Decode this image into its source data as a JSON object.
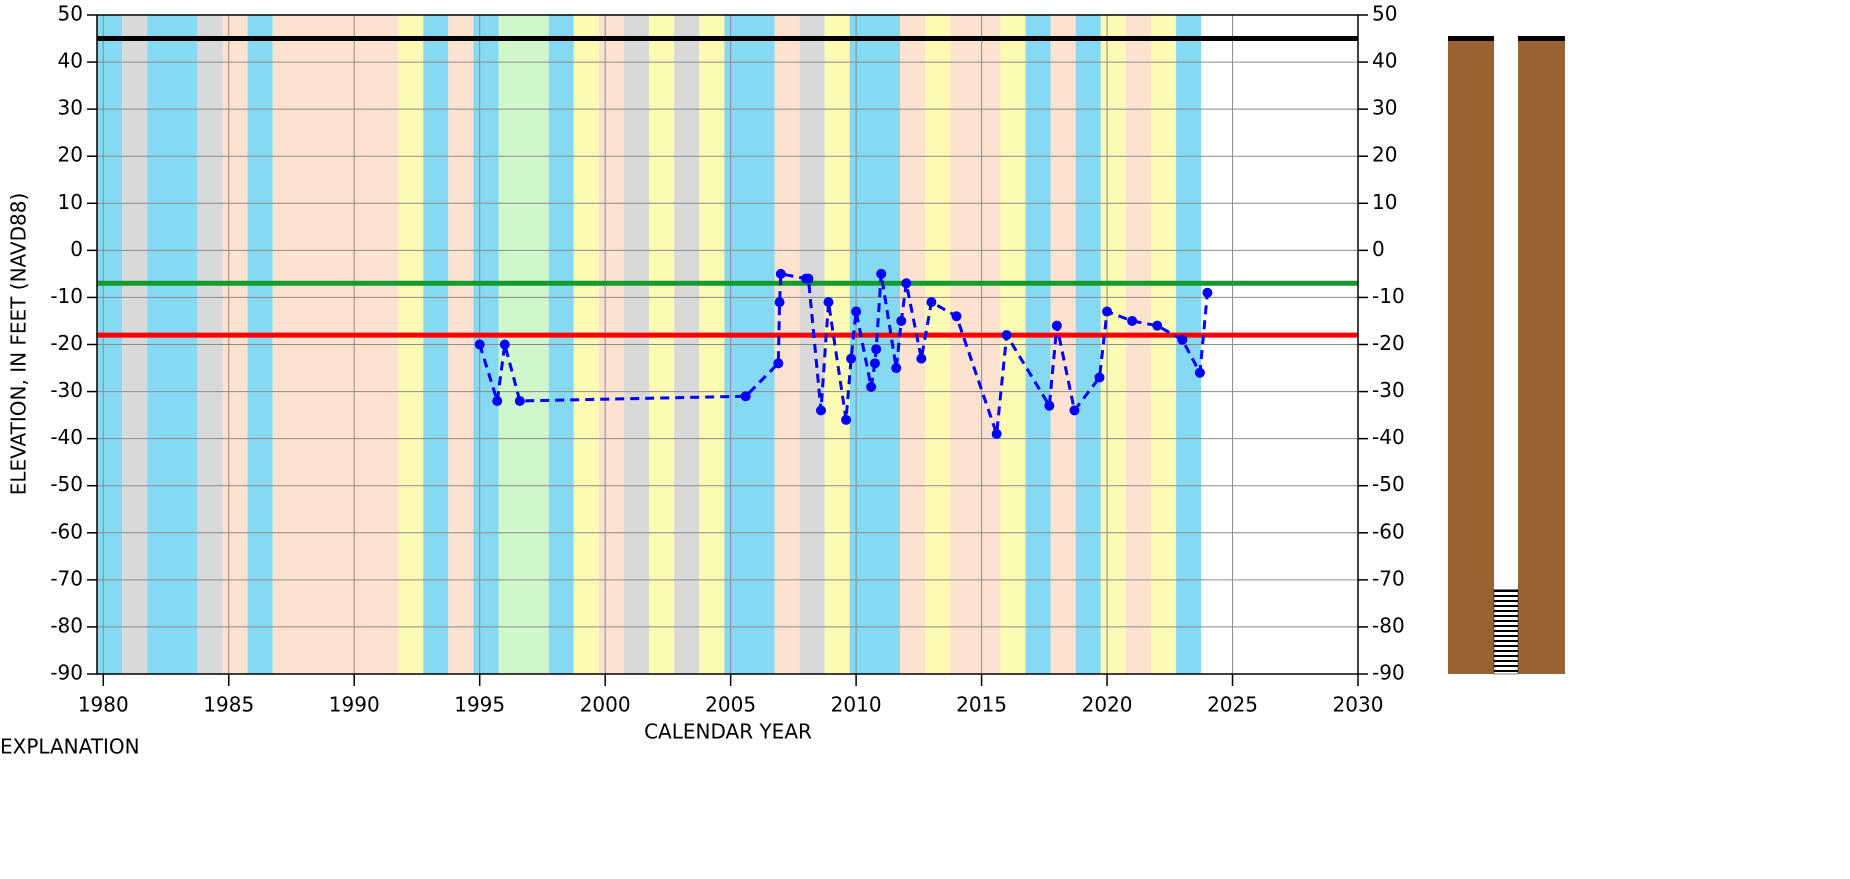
{
  "chart_data": {
    "type": "line",
    "x_label": "CALENDAR YEAR",
    "y_label": "ELEVATION, IN FEET (NAVD88)",
    "explanation": "EXPLANATION",
    "xlim": [
      1979.75,
      2030
    ],
    "xticks": [
      1980,
      1985,
      1990,
      1995,
      2000,
      2005,
      2010,
      2015,
      2020,
      2025,
      2030
    ],
    "ylim": [
      -90,
      50
    ],
    "yticks": [
      -90,
      -80,
      -70,
      -60,
      -50,
      -40,
      -30,
      -20,
      -10,
      0,
      10,
      20,
      30,
      40,
      50
    ],
    "y2lim": [
      -90,
      50
    ],
    "y2ticks": [
      -90,
      -80,
      -70,
      -60,
      -50,
      -40,
      -30,
      -20,
      -10,
      0,
      10,
      20,
      30,
      40,
      50
    ],
    "grid": true,
    "series": [
      {
        "color": "#0000ff",
        "x": [
          1995.0,
          1995.7,
          1996.0,
          1996.6,
          2005.6,
          2006.9,
          2006.95,
          2007.0,
          2008.0,
          2008.1,
          2008.6,
          2008.9,
          2009.6,
          2009.8,
          2010.0,
          2010.6,
          2010.75,
          2010.8,
          2011.0,
          2011.6,
          2011.8,
          2012.0,
          2012.6,
          2013.0,
          2014.0,
          2015.6,
          2016.0,
          2017.7,
          2018.0,
          2018.7,
          2019.7,
          2020.0,
          2021.0,
          2022.0,
          2023.0,
          2023.7,
          2024.0
        ],
        "values": [
          -20,
          -32,
          -20,
          -32,
          -31,
          -24,
          -11,
          -5,
          -6,
          -6,
          -34,
          -11,
          -36,
          -23,
          -13,
          -29,
          -24,
          -21,
          -5,
          -25,
          -15,
          -7,
          -23,
          -11,
          -14,
          -39,
          -18,
          -33,
          -16,
          -34,
          -27,
          -13,
          -15,
          -16,
          -19,
          -26,
          -9
        ]
      }
    ],
    "hlines": [
      {
        "value": 45,
        "color": "#000000"
      },
      {
        "value": -7,
        "color": "#149a2d"
      },
      {
        "value": -18,
        "color": "#ff0000"
      }
    ],
    "bands": [
      {
        "start": 1979.75,
        "end": 1980.75,
        "color": "#86d9f2"
      },
      {
        "start": 1980.75,
        "end": 1981.75,
        "color": "#d9d9d9"
      },
      {
        "start": 1981.75,
        "end": 1983.75,
        "color": "#86d9f2"
      },
      {
        "start": 1983.75,
        "end": 1984.75,
        "color": "#d9d9d9"
      },
      {
        "start": 1984.75,
        "end": 1985.75,
        "color": "#fde2cf"
      },
      {
        "start": 1985.75,
        "end": 1986.75,
        "color": "#86d9f2"
      },
      {
        "start": 1986.75,
        "end": 1991.75,
        "color": "#fde2cf"
      },
      {
        "start": 1991.75,
        "end": 1992.75,
        "color": "#fdfab4"
      },
      {
        "start": 1992.75,
        "end": 1993.75,
        "color": "#86d9f2"
      },
      {
        "start": 1993.75,
        "end": 1994.75,
        "color": "#fde2cf"
      },
      {
        "start": 1994.75,
        "end": 1995.75,
        "color": "#86d9f2"
      },
      {
        "start": 1995.75,
        "end": 1997.75,
        "color": "#cff7cb"
      },
      {
        "start": 1997.75,
        "end": 1998.75,
        "color": "#86d9f2"
      },
      {
        "start": 1998.75,
        "end": 1999.75,
        "color": "#fdfab4"
      },
      {
        "start": 1999.75,
        "end": 2000.75,
        "color": "#fde2cf"
      },
      {
        "start": 2000.75,
        "end": 2001.75,
        "color": "#d9d9d9"
      },
      {
        "start": 2001.75,
        "end": 2002.75,
        "color": "#fdfab4"
      },
      {
        "start": 2002.75,
        "end": 2003.75,
        "color": "#d9d9d9"
      },
      {
        "start": 2003.75,
        "end": 2004.75,
        "color": "#fdfab4"
      },
      {
        "start": 2004.75,
        "end": 2006.75,
        "color": "#86d9f2"
      },
      {
        "start": 2006.75,
        "end": 2007.75,
        "color": "#fde2cf"
      },
      {
        "start": 2007.75,
        "end": 2008.75,
        "color": "#d9d9d9"
      },
      {
        "start": 2008.75,
        "end": 2009.75,
        "color": "#fdfab4"
      },
      {
        "start": 2009.75,
        "end": 2011.75,
        "color": "#86d9f2"
      },
      {
        "start": 2011.75,
        "end": 2012.75,
        "color": "#fde2cf"
      },
      {
        "start": 2012.75,
        "end": 2013.75,
        "color": "#fdfab4"
      },
      {
        "start": 2013.75,
        "end": 2015.75,
        "color": "#fde2cf"
      },
      {
        "start": 2015.75,
        "end": 2016.75,
        "color": "#fdfab4"
      },
      {
        "start": 2016.75,
        "end": 2017.75,
        "color": "#86d9f2"
      },
      {
        "start": 2017.75,
        "end": 2018.75,
        "color": "#fde2cf"
      },
      {
        "start": 2018.75,
        "end": 2019.75,
        "color": "#86d9f2"
      },
      {
        "start": 2019.75,
        "end": 2020.75,
        "color": "#fdfab4"
      },
      {
        "start": 2020.75,
        "end": 2021.75,
        "color": "#fde2cf"
      },
      {
        "start": 2021.75,
        "end": 2022.75,
        "color": "#fdfab4"
      },
      {
        "start": 2022.75,
        "end": 2023.75,
        "color": "#86d9f2"
      }
    ],
    "well": {
      "top": 45,
      "bottom": -90,
      "screen_top": -72,
      "screen_bottom": -90,
      "casing_color": "#9a6232"
    }
  }
}
